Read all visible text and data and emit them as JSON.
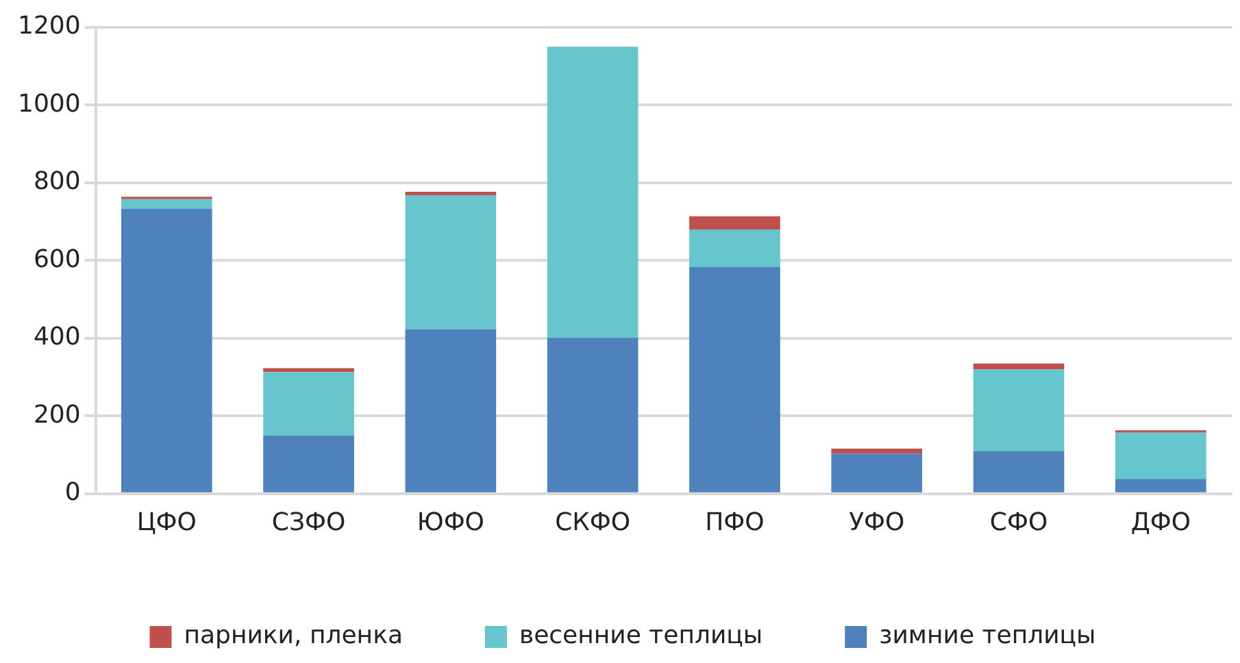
{
  "chart_data": {
    "type": "bar",
    "stacked": true,
    "categories": [
      "ЦФО",
      "СЗФО",
      "ЮФО",
      "СКФО",
      "ПФО",
      "УФО",
      "СФО",
      "ДФО"
    ],
    "series": [
      {
        "name": "зимние теплицы",
        "color": "#4f81bd",
        "values": [
          733,
          150,
          423,
          401,
          583,
          103,
          110,
          38
        ]
      },
      {
        "name": "весенние теплицы",
        "color": "#67c6cd",
        "values": [
          25,
          163,
          345,
          749,
          97,
          0,
          210,
          119
        ]
      },
      {
        "name": "парники, пленка",
        "color": "#c0504d",
        "values": [
          6,
          10,
          9,
          0,
          34,
          13,
          15,
          6
        ]
      }
    ],
    "ylim": [
      0,
      1200
    ],
    "yticks": [
      0,
      200,
      400,
      600,
      800,
      1000,
      1200
    ],
    "grid": "y",
    "legend": "bottom"
  }
}
